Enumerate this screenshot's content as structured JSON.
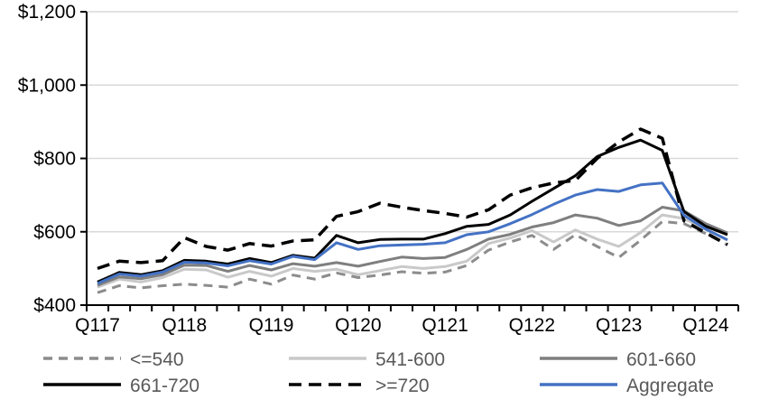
{
  "chart_data": {
    "type": "line",
    "title": "",
    "xlabel": "",
    "ylabel": "",
    "ylim": [
      400,
      1200
    ],
    "grid": true,
    "legend_position": "bottom",
    "legend_text_color": "#595959",
    "grid_color": "#d9d9d9",
    "axis_color": "#000000",
    "categories": [
      "2017Q1",
      "2017Q2",
      "2017Q3",
      "2017Q4",
      "2018Q1",
      "2018Q2",
      "2018Q3",
      "2018Q4",
      "2019Q1",
      "2019Q2",
      "2019Q3",
      "2019Q4",
      "2020Q1",
      "2020Q2",
      "2020Q3",
      "2020Q4",
      "2021Q1",
      "2021Q2",
      "2021Q3",
      "2021Q4",
      "2022Q1",
      "2022Q2",
      "2022Q3",
      "2022Q4",
      "2023Q1",
      "2023Q2",
      "2023Q3",
      "2023Q4",
      "2024Q1",
      "2024Q2"
    ],
    "x_tick_labels": [
      {
        "index": 0,
        "label": "Q117"
      },
      {
        "index": 4,
        "label": "Q118"
      },
      {
        "index": 8,
        "label": "Q119"
      },
      {
        "index": 12,
        "label": "Q120"
      },
      {
        "index": 16,
        "label": "Q121"
      },
      {
        "index": 20,
        "label": "Q122"
      },
      {
        "index": 24,
        "label": "Q123"
      },
      {
        "index": 28,
        "label": "Q124"
      }
    ],
    "y_ticks": [
      {
        "value": 400,
        "label": "$400"
      },
      {
        "value": 600,
        "label": "$600"
      },
      {
        "value": 800,
        "label": "$800"
      },
      {
        "value": 1000,
        "label": "$1,000"
      },
      {
        "value": 1200,
        "label": "$1,200"
      }
    ],
    "series": [
      {
        "name": "<=540",
        "color": "#8c8c8c",
        "dash": "10 7",
        "width": 3,
        "values": [
          434,
          453,
          447,
          453,
          457,
          454,
          449,
          471,
          457,
          482,
          471,
          488,
          475,
          482,
          491,
          487,
          490,
          508,
          550,
          572,
          590,
          552,
          592,
          560,
          530,
          577,
          628,
          622,
          595,
          564
        ]
      },
      {
        "name": "541-600",
        "color": "#c9c9c9",
        "dash": "",
        "width": 3,
        "values": [
          449,
          471,
          463,
          475,
          498,
          496,
          476,
          492,
          479,
          500,
          492,
          498,
          483,
          494,
          505,
          500,
          505,
          520,
          568,
          583,
          603,
          572,
          605,
          580,
          560,
          598,
          646,
          636,
          607,
          577
        ]
      },
      {
        "name": "601-660",
        "color": "#7f7f7f",
        "dash": "",
        "width": 3,
        "values": [
          454,
          477,
          472,
          483,
          509,
          508,
          492,
          508,
          496,
          513,
          506,
          516,
          506,
          519,
          531,
          527,
          530,
          552,
          580,
          593,
          613,
          625,
          646,
          637,
          617,
          630,
          667,
          657,
          622,
          597
        ]
      },
      {
        "name": "661-720",
        "color": "#000000",
        "dash": "",
        "width": 3,
        "values": [
          463,
          489,
          483,
          494,
          522,
          520,
          512,
          527,
          516,
          536,
          528,
          590,
          570,
          579,
          580,
          580,
          595,
          615,
          620,
          646,
          683,
          718,
          753,
          805,
          830,
          850,
          822,
          655,
          615,
          592
        ]
      },
      {
        "name": ">=720",
        "color": "#000000",
        "dash": "14 8",
        "width": 3.5,
        "values": [
          500,
          520,
          516,
          521,
          584,
          560,
          550,
          568,
          561,
          575,
          578,
          642,
          655,
          678,
          667,
          658,
          650,
          640,
          660,
          700,
          720,
          733,
          740,
          800,
          845,
          880,
          855,
          630,
          597,
          565
        ]
      },
      {
        "name": "Aggregate",
        "color": "#4472c4",
        "dash": "",
        "width": 3,
        "values": [
          459,
          485,
          479,
          490,
          517,
          515,
          507,
          521,
          512,
          533,
          524,
          570,
          552,
          562,
          564,
          566,
          570,
          592,
          600,
          622,
          647,
          675,
          700,
          715,
          710,
          728,
          733,
          645,
          607,
          578
        ]
      }
    ]
  }
}
